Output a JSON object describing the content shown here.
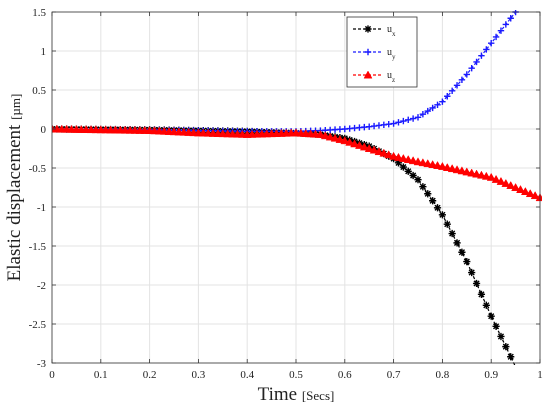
{
  "chart_data": {
    "type": "line",
    "title": "",
    "xlabel": {
      "main": "Time",
      "unit": "[Secs]"
    },
    "ylabel": {
      "main": "Elastic displacement",
      "unit": "[µm]"
    },
    "xlim": [
      0,
      1
    ],
    "ylim": [
      -3,
      1.5
    ],
    "xticks": [
      0,
      0.1,
      0.2,
      0.3,
      0.4,
      0.5,
      0.6,
      0.7,
      0.8,
      0.9,
      1
    ],
    "xtick_labels": [
      "0",
      "0.1",
      "0.2",
      "0.3",
      "0.4",
      "0.5",
      "0.6",
      "0.7",
      "0.8",
      "0.9",
      "1"
    ],
    "yticks": [
      1.5,
      1,
      0.5,
      0,
      -0.5,
      -1,
      -1.5,
      -2,
      -2.5,
      -3
    ],
    "ytick_labels": [
      "1.5",
      "1",
      "0.5",
      "0",
      "-0.5",
      "-1",
      "-1.5",
      "-2",
      "-2.5",
      "-3"
    ],
    "grid": true,
    "legend_position": "top-right",
    "series": [
      {
        "name": "u",
        "subscript": "x",
        "color": "#000000",
        "marker": "asterisk",
        "x": [
          0,
          0.1,
          0.2,
          0.3,
          0.4,
          0.5,
          0.55,
          0.6,
          0.65,
          0.7,
          0.75,
          0.8,
          0.85,
          0.9,
          0.95
        ],
        "y": [
          0,
          -0.005,
          -0.01,
          -0.02,
          -0.03,
          -0.05,
          -0.07,
          -0.12,
          -0.22,
          -0.38,
          -0.65,
          -1.1,
          -1.7,
          -2.4,
          -3.05
        ]
      },
      {
        "name": "u",
        "subscript": "y",
        "color": "#1a1aff",
        "marker": "plus",
        "x": [
          0,
          0.1,
          0.2,
          0.3,
          0.4,
          0.5,
          0.55,
          0.6,
          0.65,
          0.7,
          0.75,
          0.8,
          0.85,
          0.9,
          0.95
        ],
        "y": [
          0,
          -0.005,
          -0.01,
          -0.02,
          -0.03,
          -0.03,
          -0.02,
          0,
          0.03,
          0.07,
          0.15,
          0.35,
          0.7,
          1.1,
          1.5
        ]
      },
      {
        "name": "u",
        "subscript": "z",
        "color": "#ff0000",
        "marker": "triangle",
        "x": [
          0,
          0.1,
          0.2,
          0.3,
          0.4,
          0.5,
          0.55,
          0.6,
          0.65,
          0.7,
          0.75,
          0.8,
          0.85,
          0.9,
          0.95,
          1.0
        ],
        "y": [
          0,
          -0.01,
          -0.02,
          -0.05,
          -0.07,
          -0.05,
          -0.07,
          -0.15,
          -0.25,
          -0.35,
          -0.42,
          -0.48,
          -0.55,
          -0.62,
          -0.75,
          -0.88
        ]
      }
    ]
  }
}
